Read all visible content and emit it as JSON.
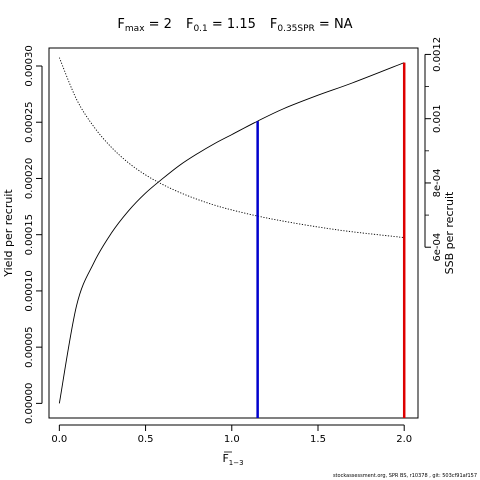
{
  "title": {
    "fmax_sym": "F",
    "fmax_sub": "max",
    "fmax_val": " = 2",
    "f01_sym": "F",
    "f01_sub": "0.1",
    "f01_val": " = 1.15",
    "fspr_sym": "F",
    "fspr_sub": "0.35SPR",
    "fspr_val": " = NA"
  },
  "footer": "stockassessment.org, SPR BS, r10378 , git: 503cf91af157",
  "chart_data": {
    "type": "line",
    "xlabel_main": "F",
    "xlabel_sub": "1−3",
    "ylabel": "Yield per recruit",
    "y2label": "SSB per recruit",
    "xlim": [
      -0.06,
      2.08
    ],
    "ylim": [
      -1.3e-05,
      0.000316
    ],
    "y2lim": [
      6.85e-05,
      0.00122
    ],
    "x_ticks": [
      "0.0",
      "0.5",
      "1.0",
      "1.5",
      "2.0"
    ],
    "x_tick_values": [
      0,
      0.5,
      1.0,
      1.5,
      2.0
    ],
    "y_ticks": [
      "0.00000",
      "0.00005",
      "0.00010",
      "0.00015",
      "0.00020",
      "0.00025",
      "0.00030"
    ],
    "y_tick_values": [
      0,
      5e-05,
      0.0001,
      0.00015,
      0.0002,
      0.00025,
      0.0003
    ],
    "y2_ticks": [
      "6e-04",
      "8e-04",
      "0.001",
      "0.0012"
    ],
    "y2_tick_values": [
      0.0006,
      0.0008,
      0.001,
      0.0012
    ],
    "series": [
      {
        "axis": "left",
        "style": "solid",
        "color": "#000000",
        "x": [
          0,
          0.1,
          0.2,
          0.3,
          0.4,
          0.5,
          0.6,
          0.7,
          0.8,
          0.9,
          1.0,
          1.15,
          1.3,
          1.5,
          1.7,
          2.0
        ],
        "y": [
          0.0,
          8.7e-05,
          0.000125,
          0.000151,
          0.000171,
          0.000187,
          0.0002,
          0.000212,
          0.000222,
          0.000231,
          0.000239,
          0.000251,
          0.000262,
          0.000274,
          0.000285,
          0.000303
        ]
      },
      {
        "axis": "right",
        "style": "dotted",
        "color": "#000000",
        "x": [
          0,
          0.1,
          0.2,
          0.3,
          0.4,
          0.5,
          0.6,
          0.7,
          0.8,
          0.9,
          1.0,
          1.15,
          1.3,
          1.5,
          1.7,
          2.0
        ],
        "y": [
          0.00119,
          0.00106,
          0.000975,
          0.000912,
          0.000863,
          0.000825,
          0.000795,
          0.00077,
          0.000749,
          0.000731,
          0.000716,
          0.000697,
          0.000681,
          0.000663,
          0.000648,
          0.00063
        ]
      }
    ],
    "reference_lines": [
      {
        "x": 1.15,
        "y": 0.000251,
        "color": "#0000CD"
      },
      {
        "x": 2.0,
        "y": 0.000303,
        "color": "#DD0000"
      }
    ]
  }
}
